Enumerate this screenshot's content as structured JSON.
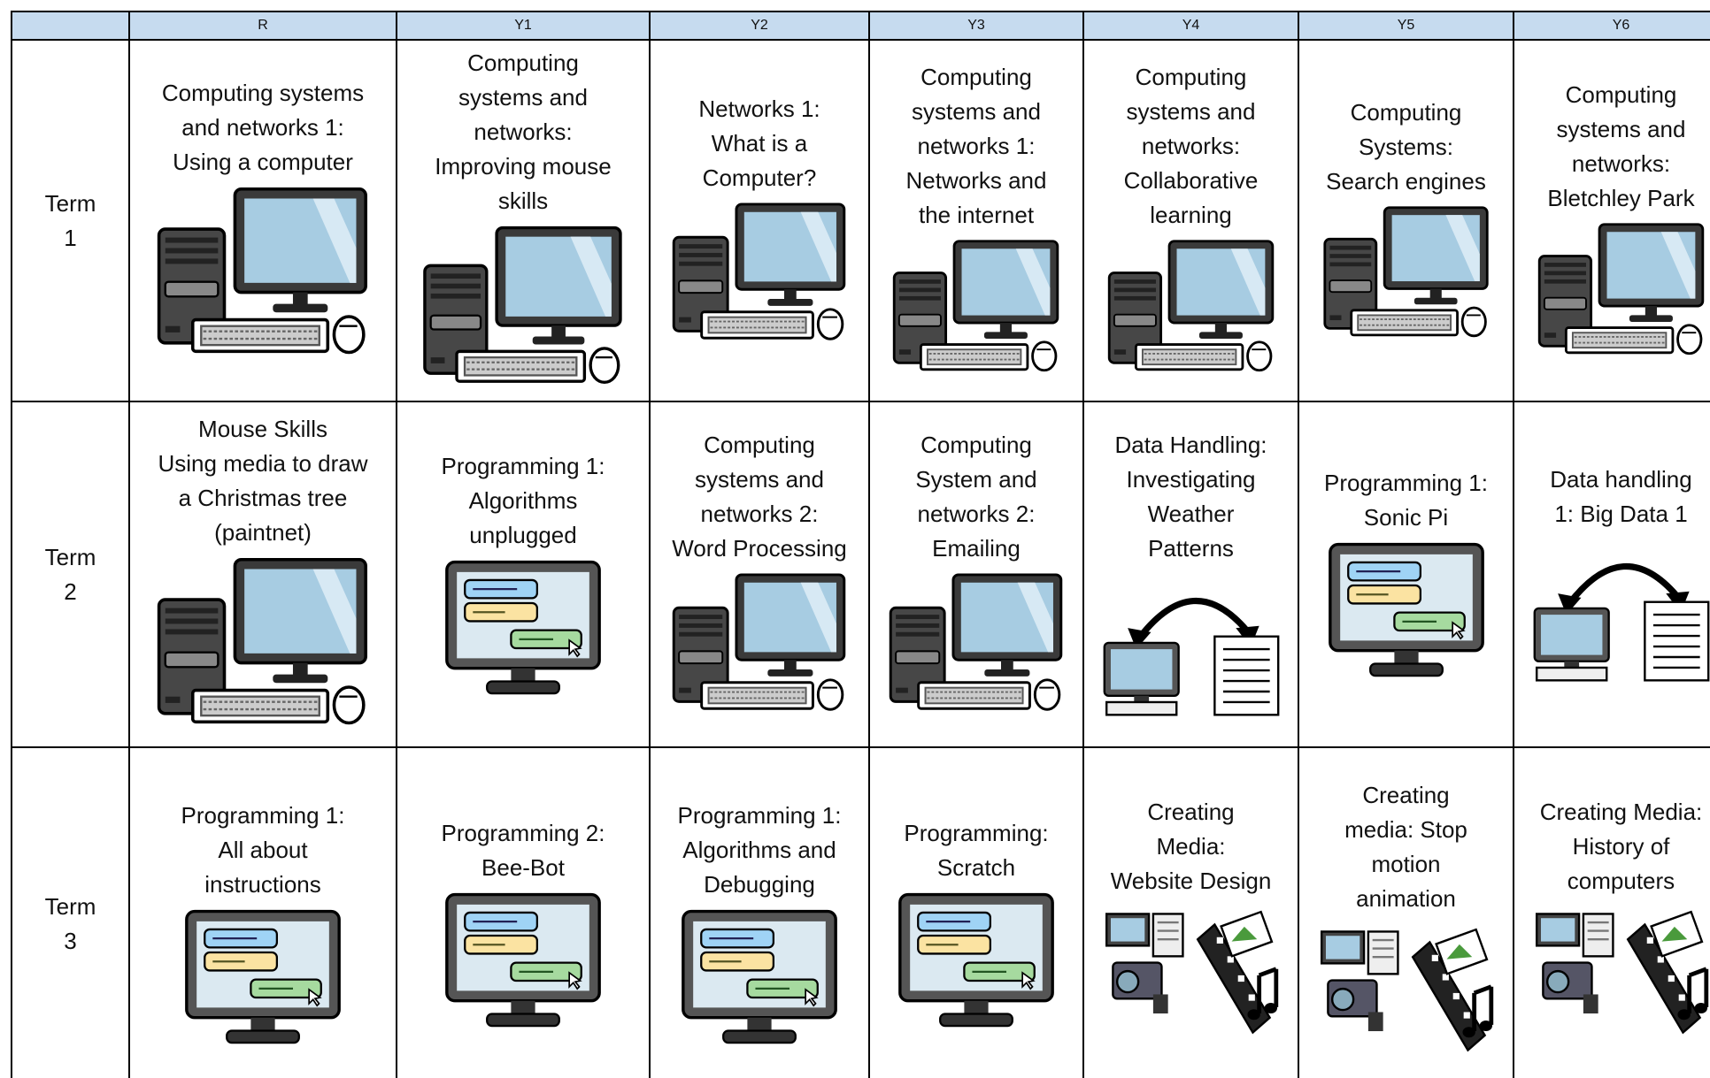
{
  "table": {
    "columns": [
      "R",
      "Y1",
      "Y2",
      "Y3",
      "Y4",
      "Y5",
      "Y6"
    ],
    "rows": [
      {
        "term": "Term\n1",
        "cells": [
          "Computing systems\nand networks 1:\nUsing a computer",
          "Computing\nsystems and\nnetworks:\nImproving mouse\nskills",
          "Networks 1:\nWhat is a\nComputer?",
          "Computing\nsystems and\nnetworks 1:\nNetworks and\nthe internet",
          "Computing\nsystems and\nnetworks:\nCollaborative\nlearning",
          "Computing\nSystems:\nSearch engines",
          "Computing\nsystems and\nnetworks:\nBletchley Park"
        ]
      },
      {
        "term": "Term\n2",
        "cells": [
          "Mouse Skills\nUsing media to draw\na Christmas tree\n(paintnet)",
          "Programming 1:\nAlgorithms\nunplugged",
          "Computing\nsystems and\nnetworks 2:\nWord Processing",
          "Computing\nSystem and\nnetworks 2:\nEmailing",
          "Data Handling:\nInvestigating\nWeather\nPatterns",
          "Programming 1:\nSonic Pi",
          "Data handling\n1: Big Data 1"
        ]
      },
      {
        "term": "Term\n3",
        "cells": [
          "Programming 1:\nAll about\ninstructions",
          "Programming 2:\nBee-Bot",
          "Programming 1:\nAlgorithms and\nDebugging",
          "Programming:\nScratch",
          "Creating\nMedia:\nWebsite Design",
          "Creating\nmedia: Stop\nmotion\nanimation",
          "Creating Media:\nHistory of\ncomputers"
        ]
      }
    ]
  }
}
